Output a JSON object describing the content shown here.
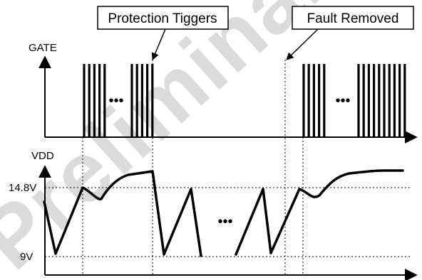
{
  "callouts": {
    "protection": "Protection Tiggers",
    "fault": "Fault Removed"
  },
  "gate_label": "GATE",
  "vdd_label": "VDD",
  "level_high": "14.8V",
  "level_low": "9V",
  "ellipsis": "•••",
  "watermark": "Preliminary",
  "colors": {
    "stroke": "#000000",
    "watermark_fill": "#000000"
  }
}
